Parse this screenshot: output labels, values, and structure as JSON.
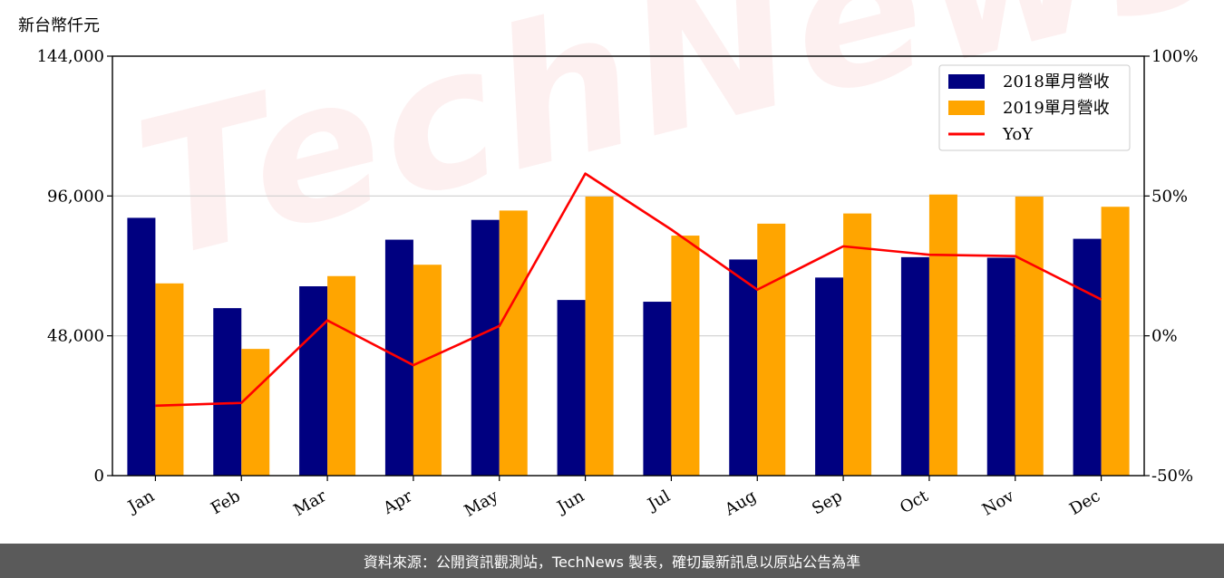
{
  "watermark": "TechNews",
  "footer_text": "資料來源：公開資訊觀測站，TechNews 製表，確切最新訊息以原站公告為準",
  "chart_data": {
    "type": "bar",
    "unit_label": "新台幣仟元",
    "categories": [
      "Jan",
      "Feb",
      "Mar",
      "Apr",
      "May",
      "Jun",
      "Jul",
      "Aug",
      "Sep",
      "Oct",
      "Nov",
      "Dec"
    ],
    "series": [
      {
        "name": "2018單月營收",
        "type": "bar",
        "axis": "left",
        "color": "#000080",
        "values": [
          88500,
          57500,
          65000,
          81000,
          87800,
          60300,
          59700,
          74200,
          68000,
          75000,
          74800,
          81300
        ]
      },
      {
        "name": "2019單月營收",
        "type": "bar",
        "axis": "left",
        "color": "#ffa500",
        "values": [
          66000,
          43500,
          68500,
          72400,
          91000,
          95800,
          82400,
          86500,
          90000,
          96500,
          95800,
          92300
        ]
      },
      {
        "name": "YoY",
        "type": "line",
        "axis": "right",
        "color": "#ff0000",
        "values": [
          -25,
          -24,
          5.5,
          -10.5,
          3.5,
          58,
          38,
          16.5,
          32,
          29,
          28.5,
          13
        ]
      }
    ],
    "left_axis": {
      "min": 0,
      "max": 144000,
      "ticks": [
        0,
        48000,
        96000,
        144000
      ],
      "tick_labels": [
        "0",
        "48,000",
        "96,000",
        "144,000"
      ]
    },
    "right_axis": {
      "min": -50,
      "max": 100,
      "ticks": [
        -50,
        0,
        50,
        100
      ],
      "tick_labels": [
        "-50%",
        "0%",
        "50%",
        "100%"
      ]
    },
    "grid": "horizontal",
    "legend_position": "top-right",
    "xtick_rotation": "rotated"
  }
}
